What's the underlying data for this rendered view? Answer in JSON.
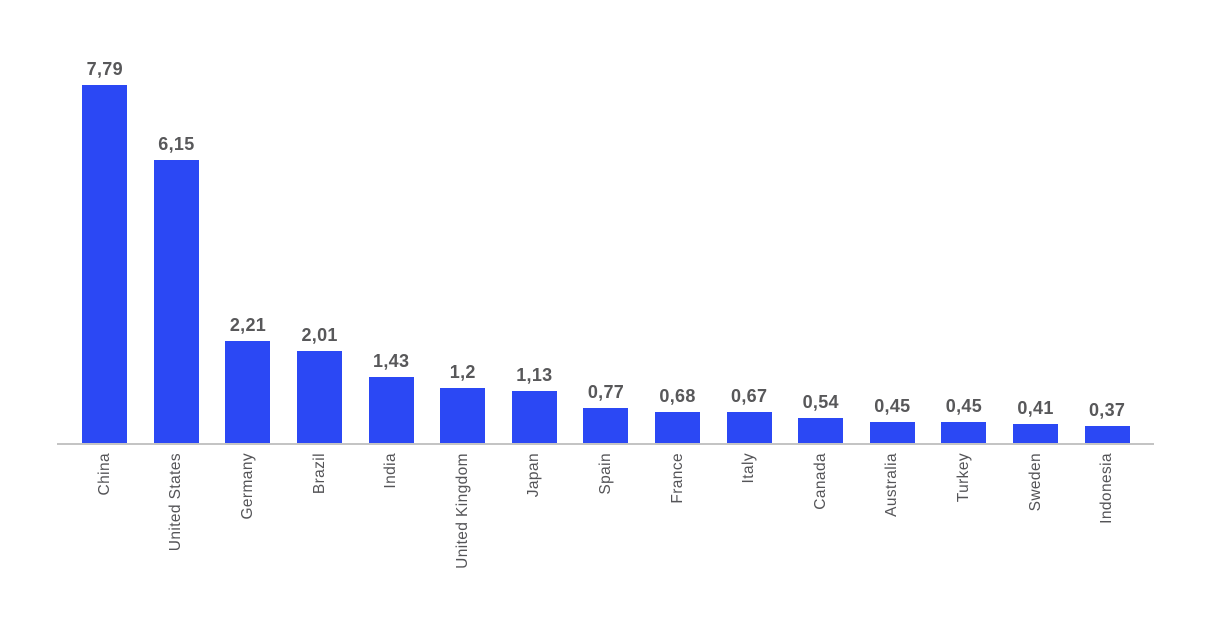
{
  "chart_data": {
    "type": "bar",
    "title": "",
    "xlabel": "",
    "ylabel": "",
    "categories": [
      "China",
      "United States",
      "Germany",
      "Brazil",
      "India",
      "United Kingdom",
      "Japan",
      "Spain",
      "France",
      "Italy",
      "Canada",
      "Australia",
      "Turkey",
      "Sweden",
      "Indonesia"
    ],
    "values": [
      7.79,
      6.15,
      2.21,
      2.01,
      1.43,
      1.2,
      1.13,
      0.77,
      0.68,
      0.67,
      0.54,
      0.45,
      0.45,
      0.41,
      0.37
    ],
    "value_labels": [
      "7,79",
      "6,15",
      "2,21",
      "2,01",
      "1,43",
      "1,2",
      "1,13",
      "0,77",
      "0,68",
      "0,67",
      "0,54",
      "0,45",
      "0,45",
      "0,41",
      "0,37"
    ],
    "ylim": [
      0,
      8
    ],
    "grid": false,
    "legend": null,
    "decimal_separator": ",",
    "colors": {
      "bar": "#2b48f4",
      "value_label": "#58585a",
      "tick_label": "#555558",
      "axis_line": "#c4c4c4",
      "background": "#ffffff"
    }
  }
}
